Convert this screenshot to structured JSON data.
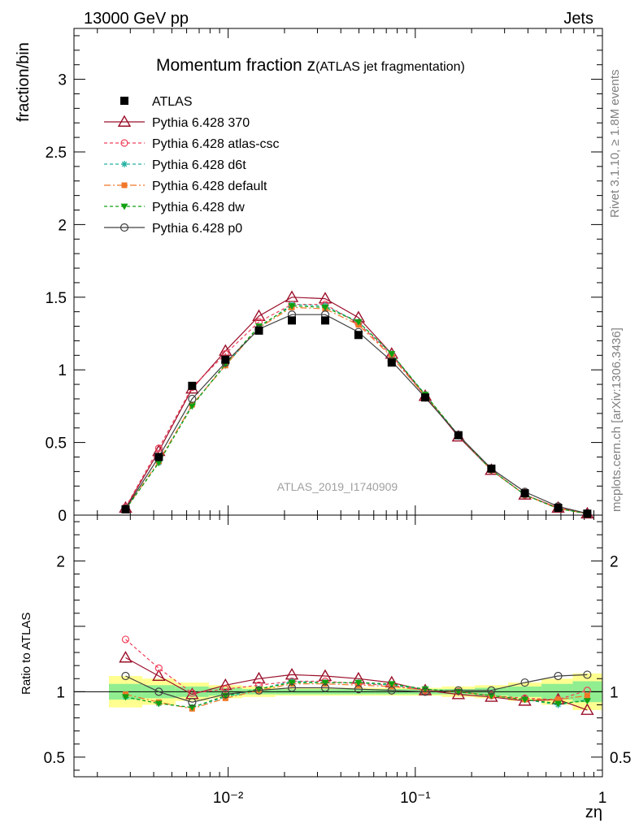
{
  "header": {
    "left": "13000 GeV pp",
    "right": "Jets"
  },
  "title": {
    "main": "Momentum fraction z",
    "sub": "(ATLAS jet fragmentation)"
  },
  "side_labels": {
    "rivet": "Rivet 3.1.10, ≥ 1.8M events",
    "mcplots": "mcplots.cern.ch [arXiv:1306.3436]"
  },
  "analysis_label": "ATLAS_2019_I1740909",
  "colors": {
    "ATLAS": "#000000",
    "Pythia 6.428 370": "#9b0f2a",
    "Pythia 6.428 atlas-csc": "#f0405a",
    "Pythia 6.428 d6t": "#20b0a0",
    "Pythia 6.428 default": "#f07828",
    "Pythia 6.428 dw": "#10a010",
    "Pythia 6.428 p0": "#404040",
    "band_inner": "#90ee90",
    "band_outer": "#ffff90"
  },
  "chart_data": {
    "type": "line",
    "xscale": "log",
    "x": [
      0.00283,
      0.00426,
      0.00642,
      0.00967,
      0.0146,
      0.0219,
      0.033,
      0.0497,
      0.0748,
      0.113,
      0.17,
      0.255,
      0.385,
      0.58,
      0.83
    ],
    "xlim": [
      0.0015,
      1
    ],
    "xlabel": "zη",
    "xtick_labels": [
      "10⁻²",
      "10⁻¹",
      "1"
    ],
    "top": {
      "ylabel": "fraction/bin",
      "ylim": [
        0,
        3.35
      ],
      "ytick_labels": [
        "0",
        "0.5",
        "1",
        "1.5",
        "2",
        "2.5",
        "3"
      ],
      "series": [
        {
          "name": "ATLAS",
          "values": [
            0.04,
            0.4,
            0.89,
            1.07,
            1.27,
            1.34,
            1.34,
            1.24,
            1.05,
            0.81,
            0.55,
            0.32,
            0.15,
            0.05,
            0.01
          ]
        },
        {
          "name": "Pythia 6.428 370",
          "values": [
            0.05,
            0.44,
            0.87,
            1.13,
            1.37,
            1.5,
            1.49,
            1.36,
            1.11,
            0.82,
            0.54,
            0.31,
            0.14,
            0.05,
            0.01
          ]
        },
        {
          "name": "Pythia 6.428 atlas-csc",
          "values": [
            0.055,
            0.46,
            0.88,
            1.11,
            1.33,
            1.45,
            1.45,
            1.32,
            1.1,
            0.82,
            0.55,
            0.31,
            0.14,
            0.05,
            0.01
          ]
        },
        {
          "name": "Pythia 6.428 d6t",
          "values": [
            0.04,
            0.36,
            0.76,
            1.03,
            1.29,
            1.45,
            1.44,
            1.33,
            1.11,
            0.83,
            0.55,
            0.31,
            0.14,
            0.045,
            0.01
          ]
        },
        {
          "name": "Pythia 6.428 default",
          "values": [
            0.04,
            0.37,
            0.76,
            1.03,
            1.29,
            1.43,
            1.42,
            1.31,
            1.09,
            0.82,
            0.55,
            0.31,
            0.14,
            0.045,
            0.01
          ]
        },
        {
          "name": "Pythia 6.428 dw",
          "values": [
            0.04,
            0.36,
            0.75,
            1.04,
            1.3,
            1.44,
            1.43,
            1.33,
            1.11,
            0.83,
            0.55,
            0.31,
            0.14,
            0.045,
            0.01
          ]
        },
        {
          "name": "Pythia 6.428 p0",
          "values": [
            0.045,
            0.4,
            0.8,
            1.05,
            1.28,
            1.38,
            1.38,
            1.26,
            1.06,
            0.81,
            0.55,
            0.32,
            0.16,
            0.06,
            0.012
          ]
        }
      ]
    },
    "ratio": {
      "ylabel": "Ratio to ATLAS",
      "ylim": [
        0.35,
        2.35
      ],
      "ytick_labels": [
        "0.5",
        "1",
        "2"
      ],
      "band_inner": [
        0.06,
        0.05,
        0.04,
        0.03,
        0.02,
        0.02,
        0.02,
        0.02,
        0.02,
        0.02,
        0.02,
        0.03,
        0.04,
        0.06,
        0.08
      ],
      "band_outer": [
        0.12,
        0.1,
        0.07,
        0.05,
        0.04,
        0.03,
        0.03,
        0.03,
        0.03,
        0.03,
        0.04,
        0.05,
        0.07,
        0.1,
        0.14
      ],
      "series": [
        {
          "name": "Pythia 6.428 370",
          "values": [
            1.26,
            1.12,
            0.98,
            1.05,
            1.1,
            1.13,
            1.12,
            1.1,
            1.07,
            1.01,
            0.98,
            0.96,
            0.93,
            0.94,
            0.86
          ]
        },
        {
          "name": "Pythia 6.428 atlas-csc",
          "values": [
            1.4,
            1.18,
            0.99,
            1.02,
            1.05,
            1.08,
            1.08,
            1.06,
            1.05,
            1.01,
            1.0,
            0.97,
            0.95,
            0.94,
            1.01
          ]
        },
        {
          "name": "Pythia 6.428 d6t",
          "values": [
            0.96,
            0.91,
            0.88,
            0.96,
            1.02,
            1.08,
            1.07,
            1.07,
            1.05,
            1.02,
            1.0,
            0.97,
            0.94,
            0.9,
            0.94
          ]
        },
        {
          "name": "Pythia 6.428 default",
          "values": [
            0.98,
            0.92,
            0.87,
            0.95,
            1.01,
            1.06,
            1.06,
            1.05,
            1.04,
            1.01,
            1.0,
            0.97,
            0.94,
            0.94,
            0.97
          ]
        },
        {
          "name": "Pythia 6.428 dw",
          "values": [
            0.96,
            0.91,
            0.88,
            0.97,
            1.02,
            1.07,
            1.07,
            1.07,
            1.06,
            1.02,
            1.0,
            0.97,
            0.94,
            0.91,
            0.93
          ]
        },
        {
          "name": "Pythia 6.428 p0",
          "values": [
            1.12,
            1.0,
            0.92,
            0.98,
            1.01,
            1.03,
            1.03,
            1.02,
            1.01,
            1.0,
            1.01,
            1.01,
            1.07,
            1.12,
            1.13
          ]
        }
      ]
    }
  }
}
